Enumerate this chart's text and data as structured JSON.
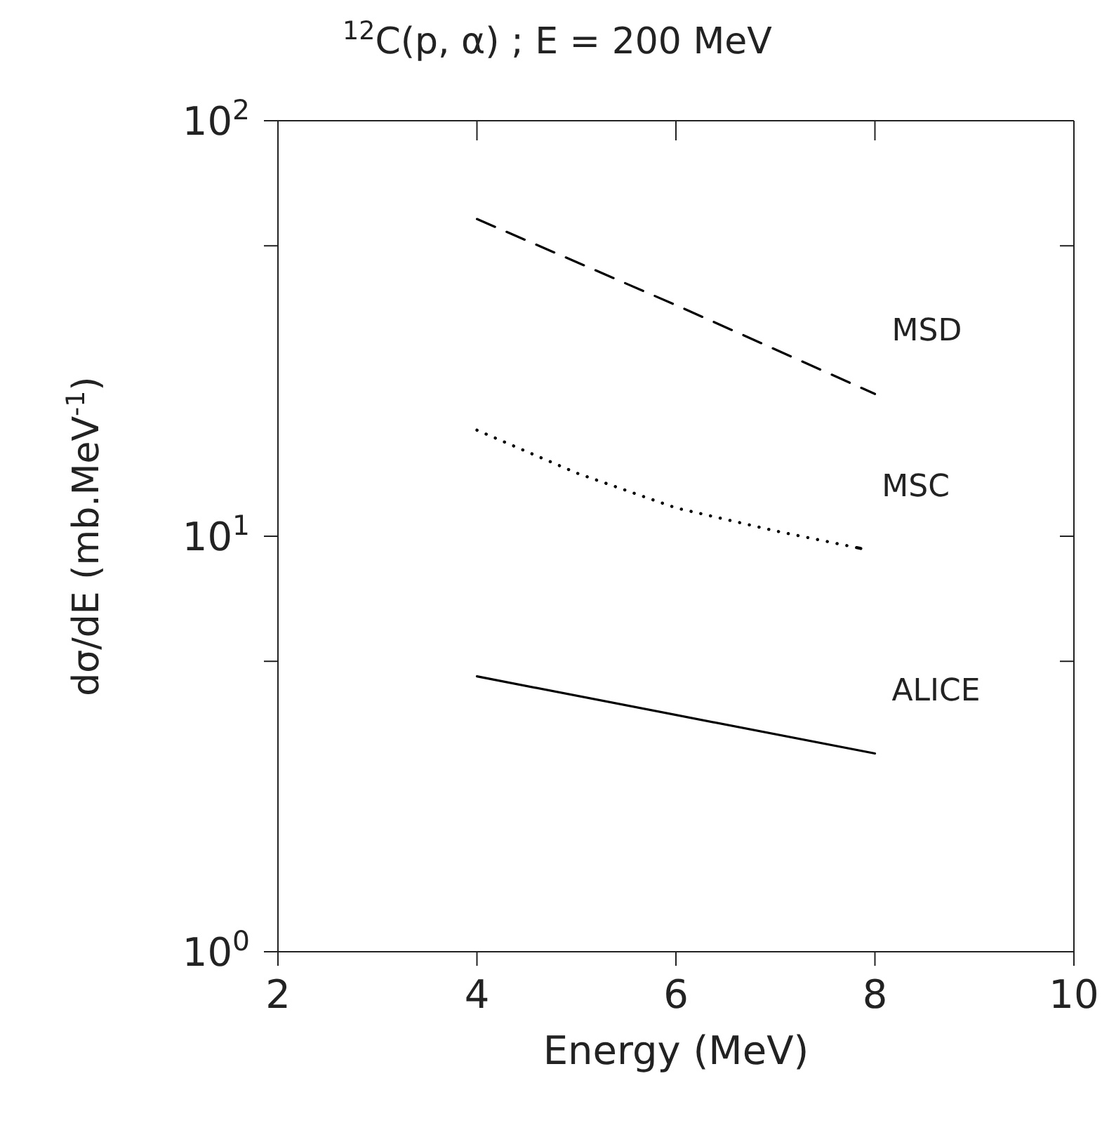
{
  "chart_data": {
    "type": "line",
    "title": "$^{12}$C(p, α) ; E = 200 MeV",
    "xlabel": "Energy (MeV)",
    "ylabel": "dσ/dE (mb.MeV$^{-1}$)",
    "log": "y",
    "xlim": [
      2,
      10
    ],
    "xticks": [
      2,
      4,
      6,
      8,
      10
    ],
    "ylim": [
      1,
      100
    ],
    "yticks": [
      {
        "value": 1,
        "label": "10$^{0}$"
      },
      {
        "value": 5,
        "label": null
      },
      {
        "value": 10,
        "label": "10$^{1}$"
      },
      {
        "value": 50,
        "label": null
      },
      {
        "value": 100,
        "label": "10$^{2}$"
      }
    ],
    "grid": false,
    "legend": false,
    "marker": "none",
    "series": [
      {
        "name": "MSD",
        "color": "#000000",
        "line_style": "dashed",
        "x": [
          4,
          6,
          8
        ],
        "values": [
          58,
          36,
          22
        ]
      },
      {
        "name": "MSC",
        "color": "#000000",
        "line_style": "dotted",
        "x": [
          4,
          5,
          6,
          7,
          7.9
        ],
        "values": [
          18,
          14.2,
          11.7,
          10.3,
          9.3
        ]
      },
      {
        "name": "ALICE",
        "color": "#000000",
        "line_style": "solid",
        "x": [
          4,
          8
        ],
        "values": [
          4.6,
          3.0
        ]
      }
    ]
  }
}
